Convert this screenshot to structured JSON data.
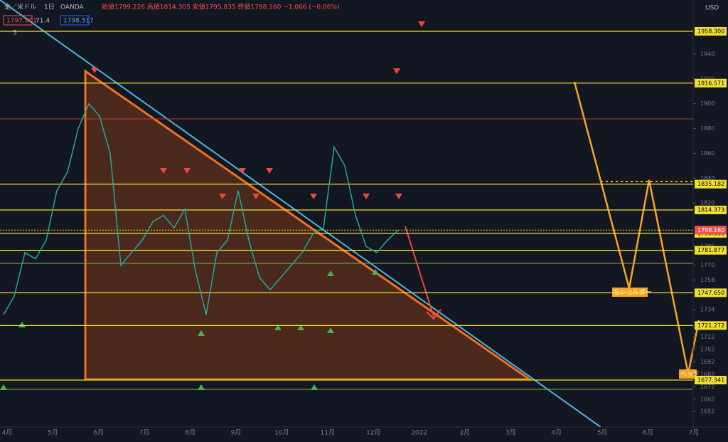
{
  "header": {
    "symbol": "金／米ドル",
    "interval": "1日",
    "source": "OANDA",
    "ohlc": "始値1799.226 高値1814.305 安値1795.835 終値1798.160 −1.066 (−0.06%)",
    "ind1": "1797.801",
    "ind2": "71.4",
    "ind3": "1798.517",
    "count": "3",
    "currency": "USD"
  },
  "price_axis": {
    "range": [
      1958.3,
      1677.341
    ],
    "ticks": [
      1940,
      1920,
      1900,
      1880,
      1860,
      1840,
      1820,
      1785,
      1770,
      1758,
      1734,
      1712,
      1702,
      1692,
      1682,
      1672,
      1662,
      1652
    ]
  },
  "levels": [
    {
      "value": 1958.3,
      "label": "1958.300"
    },
    {
      "value": 1916.571,
      "label": "1916.571"
    },
    {
      "value": 1835.182,
      "label": "1835.182"
    },
    {
      "value": 1814.373,
      "label": "1814.373"
    },
    {
      "value": 1795.538,
      "label": "1795.538"
    },
    {
      "value": 1781.877,
      "label": "1781.877"
    },
    {
      "value": 1747.65,
      "label": "1747.650"
    },
    {
      "value": 1721.272,
      "label": "1721.272"
    },
    {
      "value": 1677.341,
      "label": "1677.341"
    }
  ],
  "current_price": {
    "value": 1798.16,
    "label": "1798.160"
  },
  "time_axis": [
    "4月",
    "5月",
    "6月",
    "7月",
    "8月",
    "9月",
    "10月",
    "11月",
    "12月",
    "2022",
    "2月",
    "3月",
    "4月",
    "5月",
    "6月",
    "7月"
  ],
  "price_series": [
    1730,
    1745,
    1780,
    1775,
    1790,
    1830,
    1845,
    1880,
    1900,
    1890,
    1860,
    1770,
    1780,
    1790,
    1805,
    1810,
    1800,
    1815,
    1765,
    1730,
    1780,
    1790,
    1830,
    1790,
    1760,
    1750,
    1760,
    1770,
    1780,
    1795,
    1800,
    1865,
    1850,
    1810,
    1785,
    1780,
    1790,
    1798
  ],
  "annotations": {
    "left_shoulder": "左ショルダー",
    "head": "ヘッド"
  }
}
